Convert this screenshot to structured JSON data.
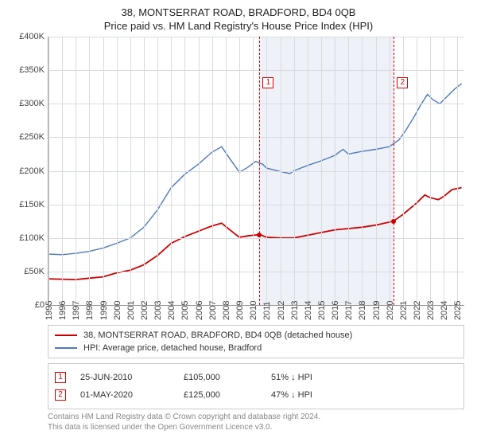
{
  "title_line1": "38, MONTSERRAT ROAD, BRADFORD, BD4 0QB",
  "title_line2": "Price paid vs. HM Land Registry's House Price Index (HPI)",
  "chart": {
    "type": "line",
    "background_color": "#ffffff",
    "grid_color": "#d8dbe0",
    "axis_color": "#999999",
    "axis_label_color": "#444444",
    "axis_label_fontsize": 11,
    "x_min": 1995.0,
    "x_max": 2025.5,
    "x_ticks": [
      1995,
      1996,
      1997,
      1998,
      1999,
      2000,
      2001,
      2002,
      2003,
      2004,
      2005,
      2006,
      2007,
      2008,
      2009,
      2010,
      2011,
      2012,
      2013,
      2014,
      2015,
      2016,
      2017,
      2018,
      2019,
      2020,
      2021,
      2022,
      2023,
      2024,
      2025
    ],
    "y_min": 0,
    "y_max": 400000,
    "y_tick_step": 50000,
    "y_tick_labels": [
      "£0",
      "£50K",
      "£100K",
      "£150K",
      "£200K",
      "£250K",
      "£300K",
      "£350K",
      "£400K"
    ],
    "shaded_region": {
      "x_start": 2010.5,
      "x_end": 2020.33,
      "fill": "#eef2f8"
    },
    "markers": [
      {
        "n": "1",
        "x": 2010.48,
        "y_line": 0.85,
        "color": "#cc0000"
      },
      {
        "n": "2",
        "x": 2020.33,
        "y_line": 0.85,
        "color": "#cc0000"
      }
    ],
    "marker_line_color": "#cc0000",
    "series_property": {
      "label": "38, MONTSERRAT ROAD, BRADFORD, BD4 0QB (detached house)",
      "color": "#cc0000",
      "line_width": 1.8,
      "points": [
        [
          1995.0,
          39000
        ],
        [
          1996.0,
          38500
        ],
        [
          1997.0,
          38000
        ],
        [
          1998.0,
          40000
        ],
        [
          1999.0,
          42000
        ],
        [
          2000.0,
          48000
        ],
        [
          2001.0,
          52000
        ],
        [
          2002.0,
          60000
        ],
        [
          2003.0,
          74000
        ],
        [
          2004.0,
          92000
        ],
        [
          2005.0,
          102000
        ],
        [
          2006.0,
          110000
        ],
        [
          2007.0,
          118000
        ],
        [
          2007.7,
          122000
        ],
        [
          2008.3,
          112000
        ],
        [
          2009.0,
          101000
        ],
        [
          2009.6,
          103000
        ],
        [
          2010.5,
          105000
        ],
        [
          2011.0,
          101000
        ],
        [
          2012.0,
          100000
        ],
        [
          2013.0,
          100000
        ],
        [
          2014.0,
          104000
        ],
        [
          2015.0,
          108000
        ],
        [
          2016.0,
          112000
        ],
        [
          2017.0,
          114000
        ],
        [
          2018.0,
          116000
        ],
        [
          2019.0,
          119000
        ],
        [
          2020.3,
          125000
        ],
        [
          2021.0,
          135000
        ],
        [
          2022.0,
          152000
        ],
        [
          2022.6,
          164000
        ],
        [
          2023.0,
          160000
        ],
        [
          2023.6,
          157000
        ],
        [
          2024.0,
          162000
        ],
        [
          2024.6,
          172000
        ],
        [
          2025.3,
          175000
        ]
      ],
      "sale_dots": [
        {
          "x": 2010.48,
          "y": 105000
        },
        {
          "x": 2020.33,
          "y": 125000
        }
      ]
    },
    "series_hpi": {
      "label": "HPI: Average price, detached house, Bradford",
      "color": "#4f79b8",
      "line_width": 1.4,
      "points": [
        [
          1995.0,
          76000
        ],
        [
          1996.0,
          75000
        ],
        [
          1997.0,
          77000
        ],
        [
          1998.0,
          80000
        ],
        [
          1999.0,
          85000
        ],
        [
          2000.0,
          92000
        ],
        [
          2001.0,
          100000
        ],
        [
          2002.0,
          116000
        ],
        [
          2003.0,
          142000
        ],
        [
          2004.0,
          175000
        ],
        [
          2005.0,
          195000
        ],
        [
          2006.0,
          210000
        ],
        [
          2007.0,
          228000
        ],
        [
          2007.7,
          236000
        ],
        [
          2008.3,
          218000
        ],
        [
          2009.0,
          198000
        ],
        [
          2009.6,
          205000
        ],
        [
          2010.2,
          214000
        ],
        [
          2010.7,
          210000
        ],
        [
          2011.0,
          204000
        ],
        [
          2012.0,
          199000
        ],
        [
          2012.7,
          196000
        ],
        [
          2013.0,
          200000
        ],
        [
          2014.0,
          208000
        ],
        [
          2015.0,
          215000
        ],
        [
          2016.0,
          223000
        ],
        [
          2016.6,
          232000
        ],
        [
          2017.0,
          225000
        ],
        [
          2018.0,
          229000
        ],
        [
          2019.0,
          232000
        ],
        [
          2020.0,
          236000
        ],
        [
          2020.7,
          246000
        ],
        [
          2021.2,
          260000
        ],
        [
          2021.8,
          280000
        ],
        [
          2022.3,
          298000
        ],
        [
          2022.8,
          314000
        ],
        [
          2023.2,
          306000
        ],
        [
          2023.7,
          300000
        ],
        [
          2024.2,
          310000
        ],
        [
          2024.8,
          322000
        ],
        [
          2025.3,
          330000
        ]
      ]
    }
  },
  "legend": {
    "border_color": "#cccccc",
    "fontsize": 11
  },
  "sales": {
    "border_num_text_color": "#cc0000",
    "rows": [
      {
        "n": "1",
        "date": "25-JUN-2010",
        "price": "£105,000",
        "ratio": "51% ↓ HPI"
      },
      {
        "n": "2",
        "date": "01-MAY-2020",
        "price": "£125,000",
        "ratio": "47% ↓ HPI"
      }
    ]
  },
  "footer_line1": "Contains HM Land Registry data © Crown copyright and database right 2024.",
  "footer_line2": "This data is licensed under the Open Government Licence v3.0."
}
